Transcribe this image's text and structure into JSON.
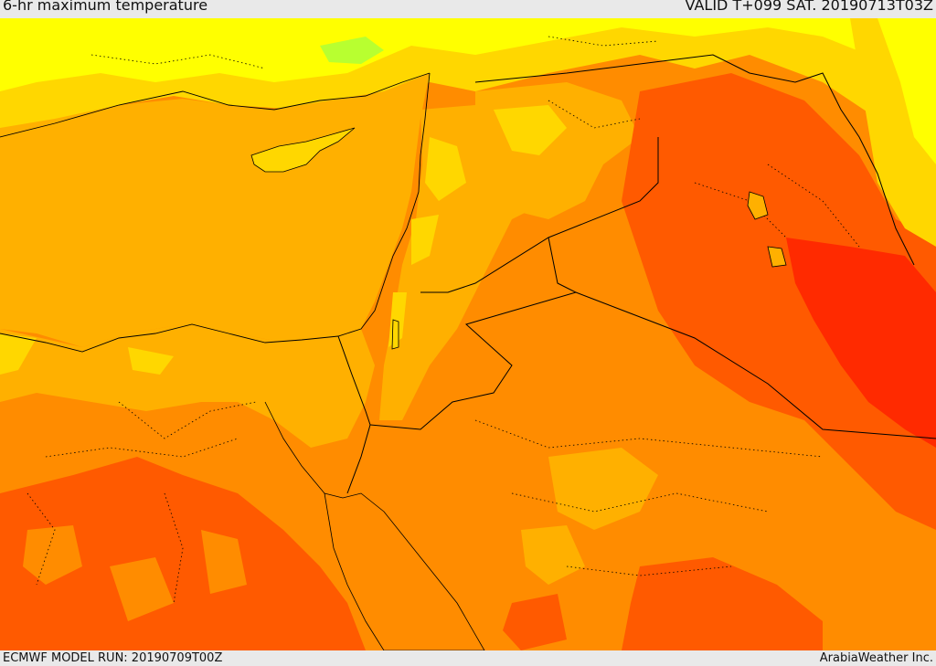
{
  "header": {
    "title": "6-hr maximum temperature",
    "valid": "VALID T+099 SAT. 20190713T03Z"
  },
  "footer": {
    "model_run": "ECMWF MODEL RUN: 20190709T00Z",
    "credit": "ArabiaWeather Inc."
  },
  "palette": {
    "cool_yellow": "#ffff00",
    "light_yellow": "#ffd700",
    "amber": "#ffb000",
    "orange": "#ff8c00",
    "dark_orange": "#ff5a00",
    "hot_red": "#ff2a00",
    "green_patch": "#b8ff30",
    "border_color": "#000000"
  }
}
